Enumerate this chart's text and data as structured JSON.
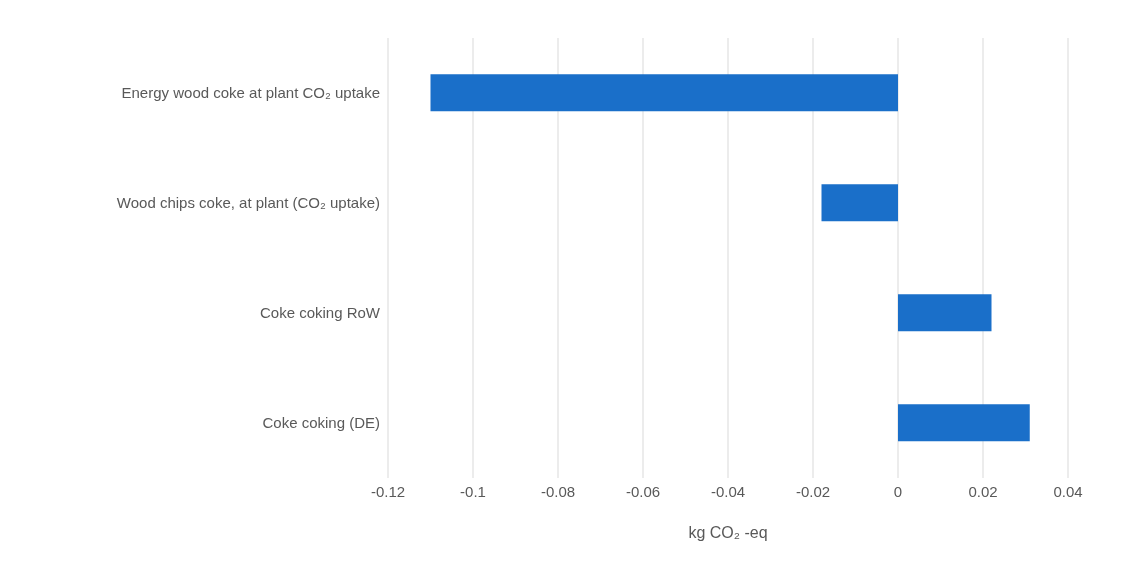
{
  "chart_data": {
    "type": "bar",
    "orientation": "horizontal",
    "xlabel": "kg CO₂ -eq",
    "categories": [
      "Energy wood coke at plant CO₂ uptake",
      "Wood chips coke, at plant (CO₂ uptake)",
      "Coke coking RoW",
      "Coke coking (DE)"
    ],
    "values": [
      -0.11,
      -0.018,
      0.022,
      0.031
    ],
    "color": "#1a6fc9",
    "xlim": [
      -0.12,
      0.04
    ],
    "xticks": [
      -0.12,
      -0.1,
      -0.08,
      -0.06,
      -0.04,
      -0.02,
      0,
      0.02,
      0.04
    ],
    "grid": "x"
  }
}
